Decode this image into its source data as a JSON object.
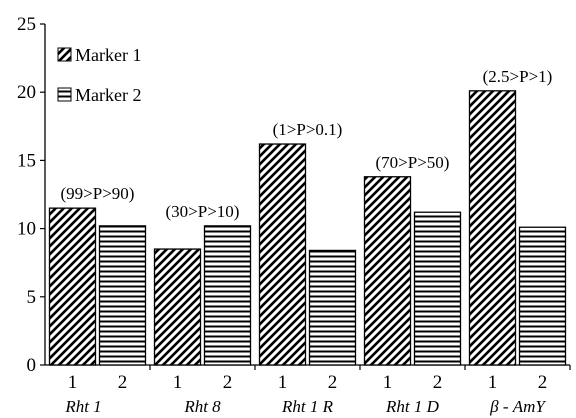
{
  "chart_data": {
    "type": "bar",
    "title": "",
    "xlabel": "",
    "ylabel": "",
    "ylim": [
      0,
      25
    ],
    "yticks": [
      0,
      5,
      10,
      15,
      20,
      25
    ],
    "grid": false,
    "legend_position": "top-left",
    "categories": [
      "Rht 1",
      "Rht 8",
      "Rht 1 R",
      "Rht 1 D",
      "β - AmY"
    ],
    "series": [
      {
        "name": "Marker 1",
        "sublabel": "1",
        "pattern": "diagonal-hatch",
        "values": [
          11.5,
          8.5,
          16.2,
          13.8,
          20.1
        ]
      },
      {
        "name": "Marker 2",
        "sublabel": "2",
        "pattern": "horizontal-hatch",
        "values": [
          10.2,
          10.2,
          8.4,
          11.2,
          10.1
        ]
      }
    ],
    "annotations": [
      "(99>P>90)",
      "(30>P>10)",
      "(1>P>0.1)",
      "(70>P>50)",
      "(2.5>P>1)"
    ]
  }
}
